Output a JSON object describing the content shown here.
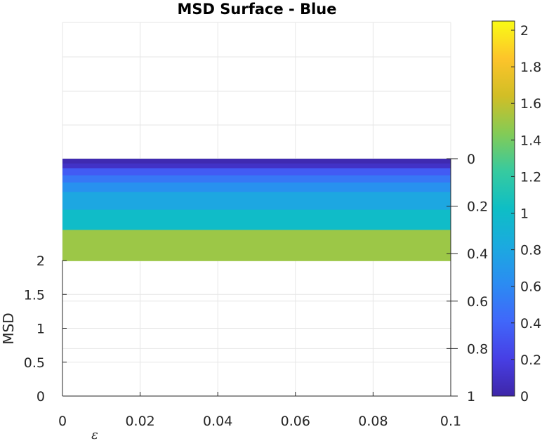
{
  "chart_data": {
    "type": "heatmap",
    "title": "MSD Surface - Blue",
    "xlabel": "ε",
    "ylabel": "MSD",
    "xlim": [
      0,
      0.1
    ],
    "x_ticks": [
      "0",
      "0.02",
      "0.04",
      "0.06",
      "0.08",
      "0.1"
    ],
    "ylim_left": [
      0,
      2
    ],
    "y_ticks_left": [
      "0",
      "0.5",
      "1",
      "1.5",
      "2"
    ],
    "ylim_right": [
      0,
      1
    ],
    "y_ticks_right": [
      "0",
      "0.2",
      "0.4",
      "0.6",
      "0.8",
      "1"
    ],
    "grid": true,
    "surface_bands": [
      {
        "y0": 0.0,
        "y1": 0.02,
        "value": 0.03
      },
      {
        "y0": 0.02,
        "y1": 0.04,
        "value": 0.1
      },
      {
        "y0": 0.04,
        "y1": 0.07,
        "value": 0.35
      },
      {
        "y0": 0.07,
        "y1": 0.1,
        "value": 0.5
      },
      {
        "y0": 0.1,
        "y1": 0.14,
        "value": 0.65
      },
      {
        "y0": 0.14,
        "y1": 0.215,
        "value": 0.8
      },
      {
        "y0": 0.215,
        "y1": 0.3,
        "value": 1.0
      },
      {
        "y0": 0.3,
        "y1": 0.43,
        "value": 1.5
      }
    ],
    "colorbar": {
      "lim": [
        0,
        2.05
      ],
      "ticks": [
        "0",
        "0.2",
        "0.4",
        "0.6",
        "0.8",
        "1",
        "1.2",
        "1.4",
        "1.6",
        "1.8",
        "2"
      ],
      "colormap": "parula"
    }
  }
}
